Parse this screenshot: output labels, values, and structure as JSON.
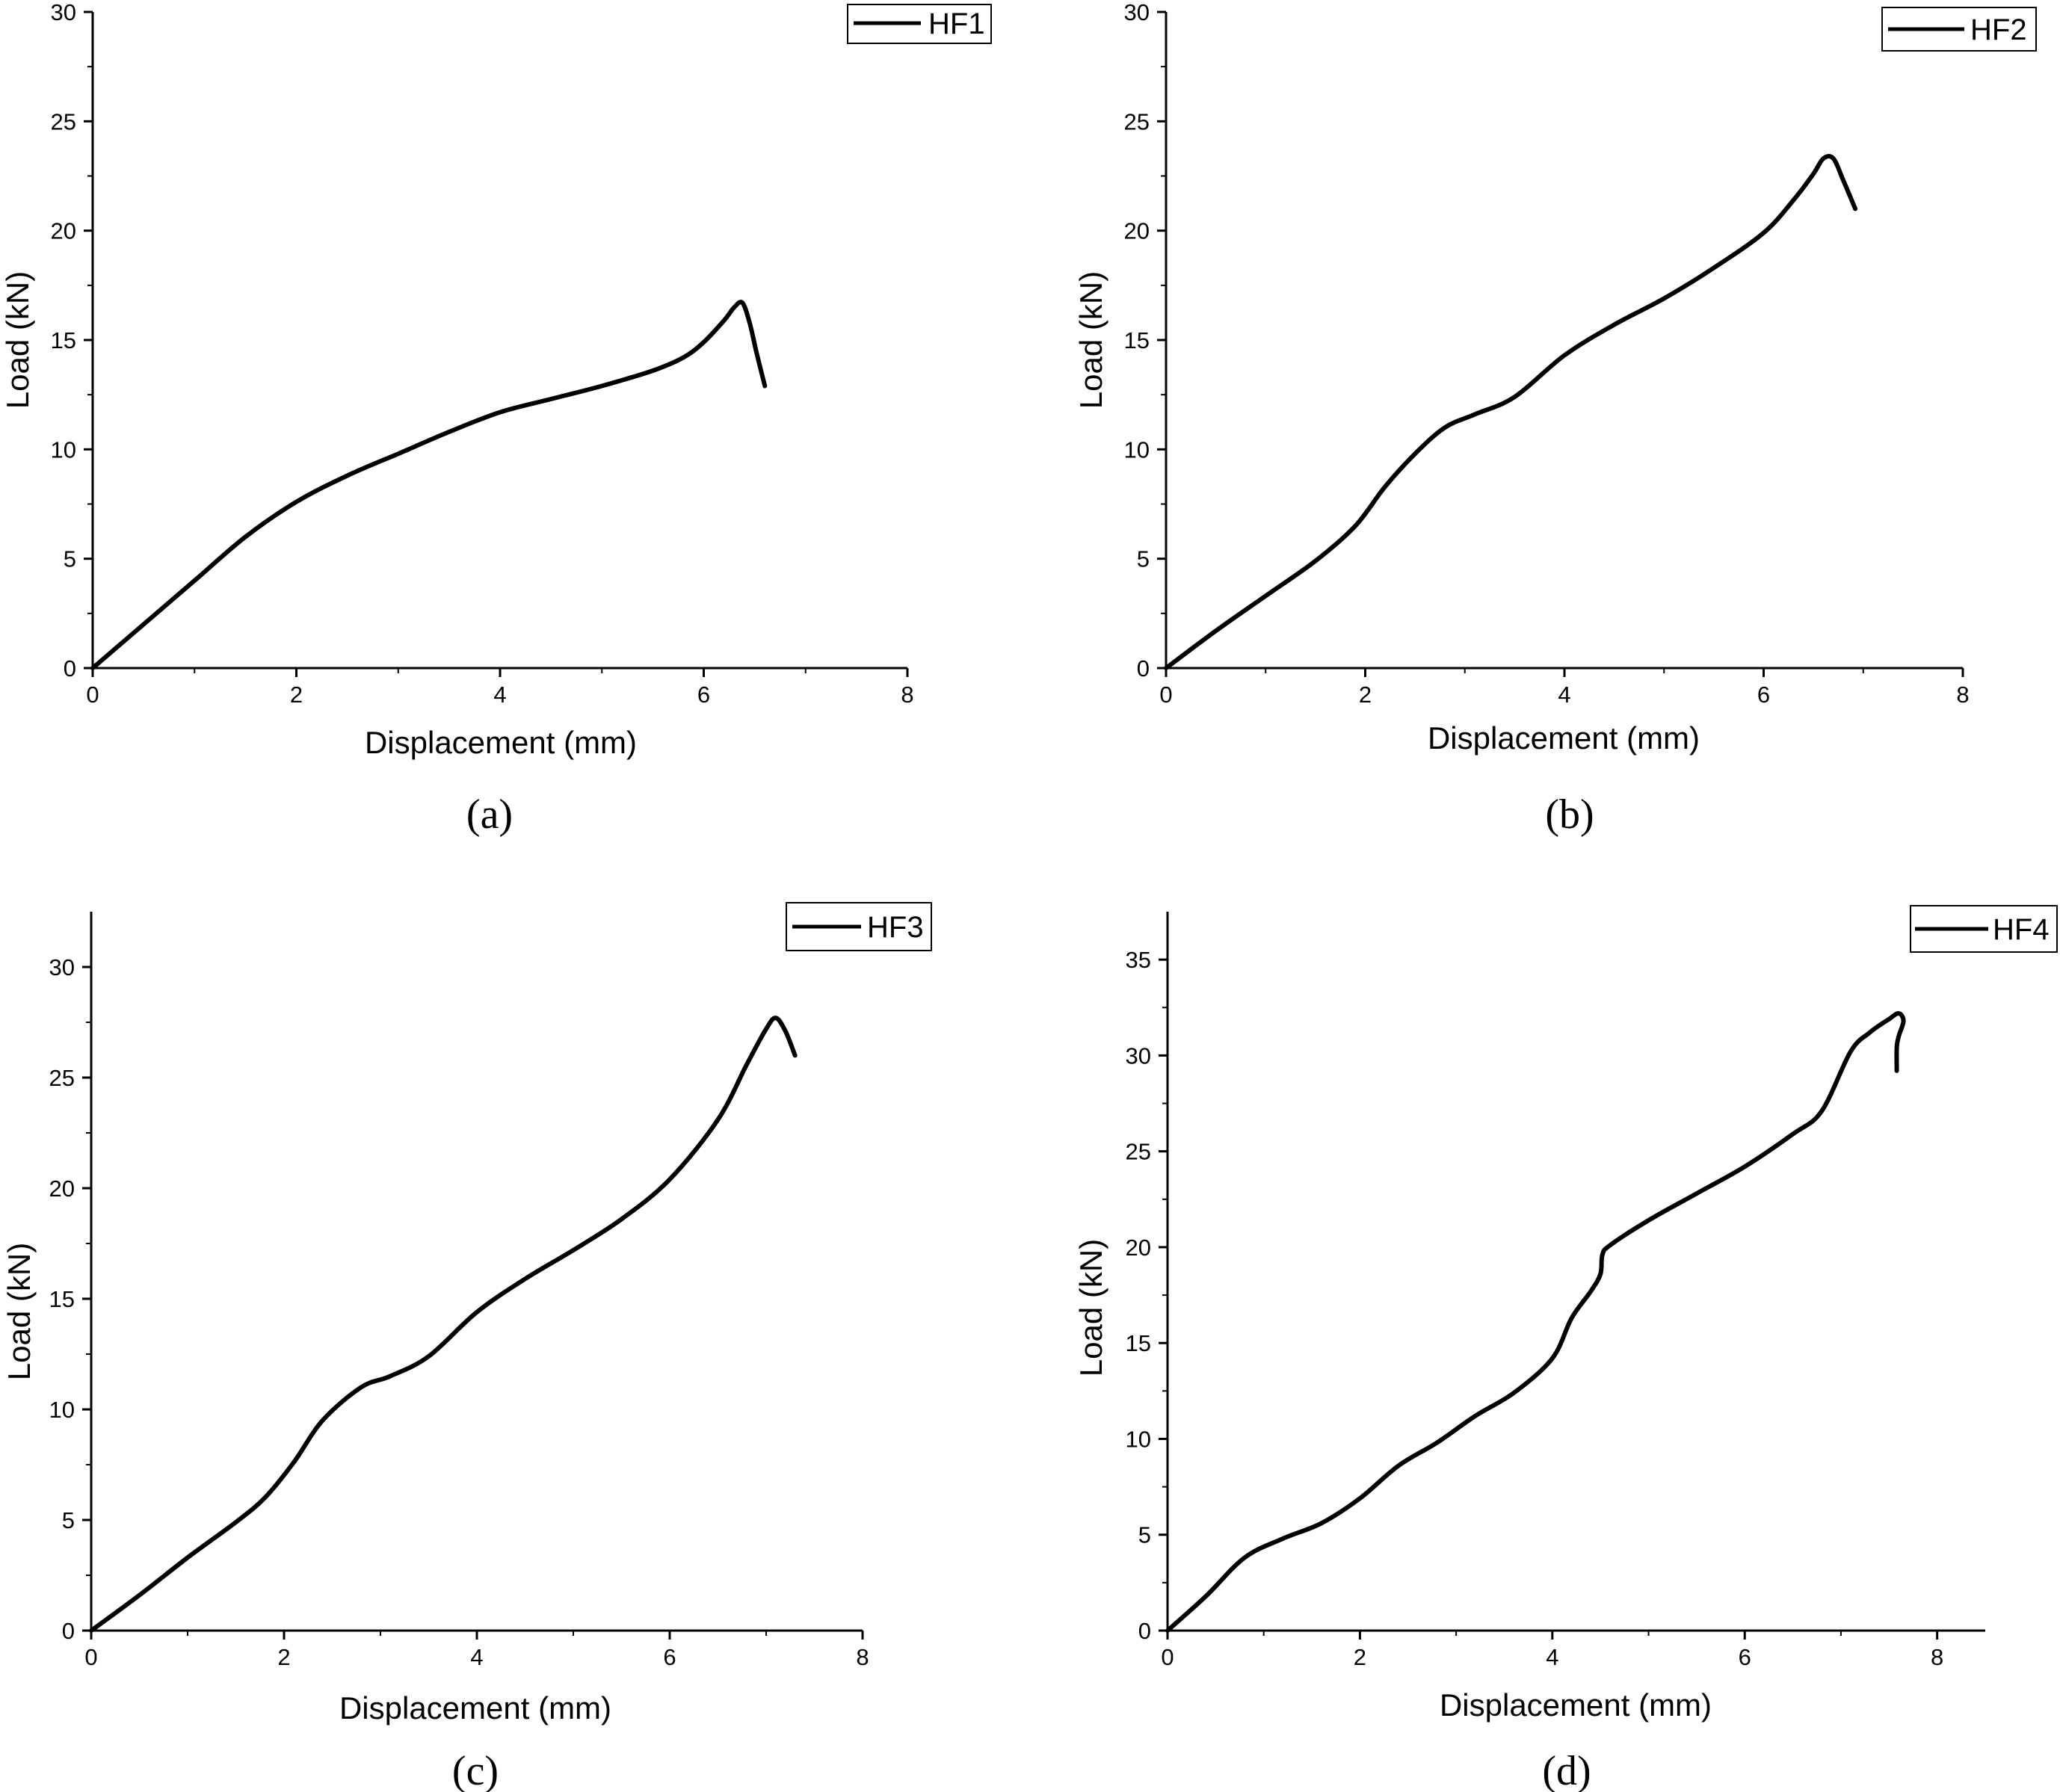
{
  "panels": [
    {
      "caption": "(a)"
    },
    {
      "caption": "(b)"
    },
    {
      "caption": "(c)"
    },
    {
      "caption": "(d)"
    }
  ],
  "chart_data": [
    {
      "type": "line",
      "xlabel": "Displacement (mm)",
      "ylabel": "Load (kN)",
      "xlim": [
        0,
        8
      ],
      "ylim": [
        0,
        30
      ],
      "xticks": [
        0,
        2,
        4,
        6,
        8
      ],
      "yticks": [
        0,
        5,
        10,
        15,
        20,
        25,
        30
      ],
      "legend_position": "top-right",
      "series": [
        {
          "name": "HF1",
          "color": "#000000",
          "x": [
            0,
            0.5,
            1.0,
            1.5,
            2.0,
            2.5,
            3.0,
            3.5,
            4.0,
            4.5,
            5.0,
            5.5,
            5.8,
            6.0,
            6.2,
            6.3,
            6.38,
            6.45,
            6.52,
            6.6
          ],
          "y": [
            0,
            2.0,
            4.0,
            6.0,
            7.6,
            8.8,
            9.8,
            10.8,
            11.7,
            12.3,
            12.9,
            13.6,
            14.2,
            14.9,
            15.9,
            16.5,
            16.7,
            15.8,
            14.4,
            12.9
          ]
        }
      ]
    },
    {
      "type": "line",
      "xlabel": "Displacement (mm)",
      "ylabel": "Load (kN)",
      "xlim": [
        0,
        8
      ],
      "ylim": [
        0,
        30
      ],
      "xticks": [
        0,
        2,
        4,
        6,
        8
      ],
      "yticks": [
        0,
        5,
        10,
        15,
        20,
        25,
        30
      ],
      "legend_position": "top-right",
      "series": [
        {
          "name": "HF2",
          "color": "#000000",
          "x": [
            0,
            0.5,
            1.0,
            1.5,
            1.9,
            2.2,
            2.5,
            2.8,
            3.1,
            3.5,
            4.0,
            4.5,
            5.0,
            5.5,
            6.0,
            6.3,
            6.5,
            6.6,
            6.7,
            6.8,
            6.92
          ],
          "y": [
            0,
            1.7,
            3.3,
            4.9,
            6.5,
            8.3,
            9.8,
            11.0,
            11.6,
            12.4,
            14.3,
            15.7,
            16.9,
            18.3,
            19.9,
            21.4,
            22.6,
            23.3,
            23.3,
            22.3,
            21.0
          ]
        }
      ]
    },
    {
      "type": "line",
      "xlabel": "Displacement (mm)",
      "ylabel": "Load (kN)",
      "xlim": [
        0,
        8
      ],
      "ylim": [
        0,
        32.5
      ],
      "xticks": [
        0,
        2,
        4,
        6,
        8
      ],
      "yticks": [
        0,
        5,
        10,
        15,
        20,
        25,
        30
      ],
      "legend_position": "top-right",
      "series": [
        {
          "name": "HF3",
          "color": "#000000",
          "x": [
            0,
            0.5,
            1.0,
            1.5,
            1.8,
            2.1,
            2.4,
            2.8,
            3.1,
            3.5,
            4.0,
            4.5,
            5.0,
            5.5,
            6.0,
            6.5,
            6.8,
            7.0,
            7.1,
            7.2,
            7.3
          ],
          "y": [
            0,
            1.6,
            3.3,
            4.9,
            6.0,
            7.6,
            9.5,
            11.0,
            11.5,
            12.4,
            14.4,
            15.9,
            17.2,
            18.6,
            20.4,
            23.1,
            25.6,
            27.2,
            27.7,
            27.1,
            26.0
          ]
        }
      ]
    },
    {
      "type": "line",
      "xlabel": "Displacement (mm)",
      "ylabel": "Load (kN)",
      "xlim": [
        0,
        8.5
      ],
      "ylim": [
        0,
        37.5
      ],
      "xticks": [
        0,
        2,
        4,
        6,
        8
      ],
      "yticks": [
        0,
        5,
        10,
        15,
        20,
        25,
        30,
        35
      ],
      "legend_position": "top-right",
      "series": [
        {
          "name": "HF4",
          "color": "#000000",
          "x": [
            0,
            0.4,
            0.8,
            1.2,
            1.6,
            2.0,
            2.4,
            2.8,
            3.2,
            3.6,
            4.0,
            4.2,
            4.4,
            4.5,
            4.52,
            4.6,
            5.0,
            5.5,
            6.0,
            6.5,
            6.8,
            7.1,
            7.3,
            7.5,
            7.6,
            7.65,
            7.6,
            7.58,
            7.58
          ],
          "y": [
            0,
            1.8,
            3.8,
            4.8,
            5.6,
            6.9,
            8.6,
            9.8,
            11.2,
            12.4,
            14.2,
            16.3,
            17.7,
            18.6,
            19.6,
            20.1,
            21.4,
            22.8,
            24.2,
            25.9,
            27.1,
            30.2,
            31.2,
            31.9,
            32.2,
            31.8,
            31.0,
            30.4,
            29.2
          ]
        }
      ]
    }
  ]
}
